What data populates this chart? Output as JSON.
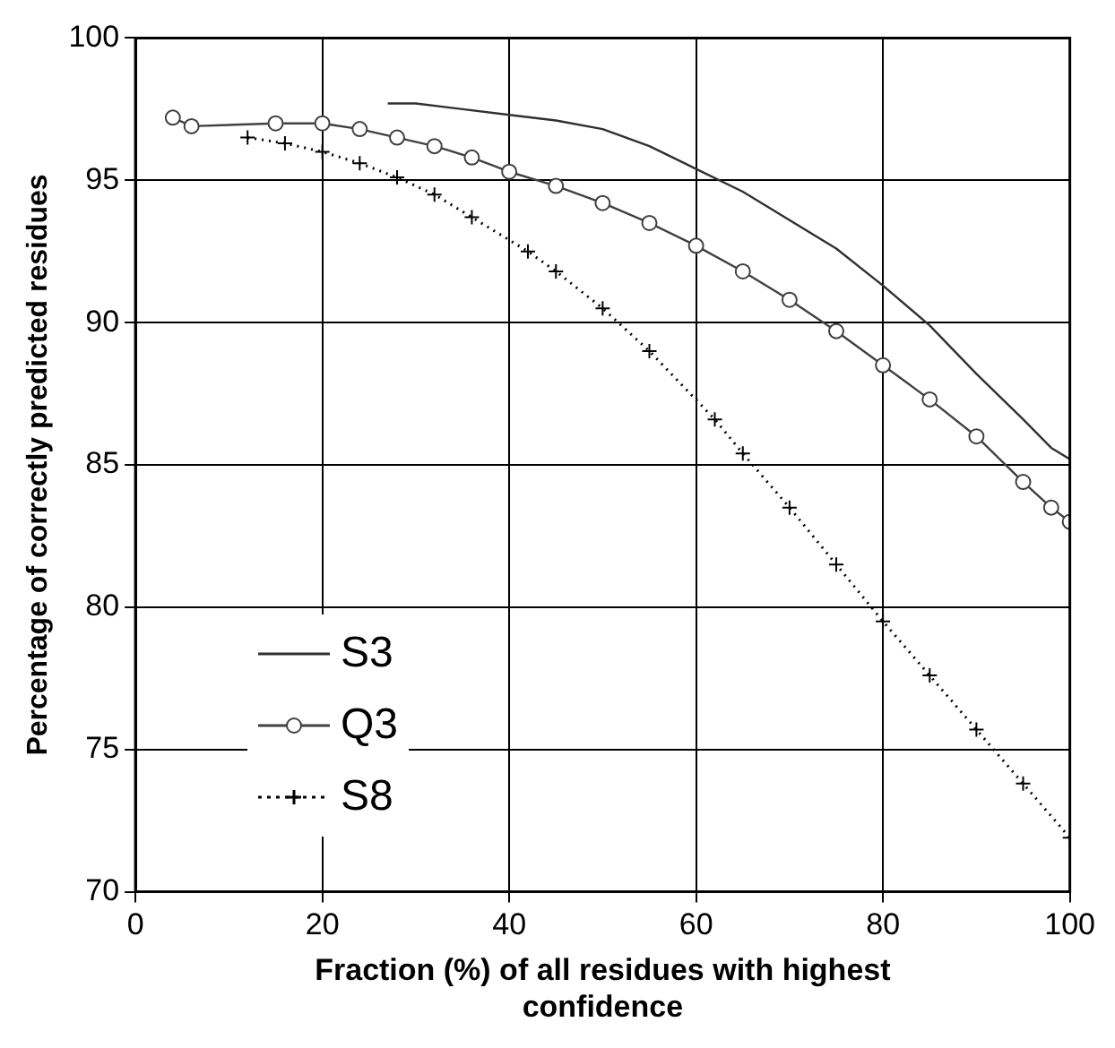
{
  "chart_data": {
    "type": "line",
    "xlabel": "Fraction (%) of all residues with highest confidence",
    "ylabel": "Percentage of correctly predicted residues",
    "xlim": [
      0,
      100
    ],
    "xticks": [
      0,
      20,
      40,
      60,
      80,
      100
    ],
    "ylim": [
      70,
      100
    ],
    "yticks": [
      70,
      75,
      80,
      85,
      90,
      95,
      100
    ],
    "grid": true,
    "legend": "bottom left",
    "series": [
      {
        "name": "S3",
        "color": "#303030",
        "marker": "none",
        "line_style": "solid",
        "x": [
          27,
          30,
          35,
          40,
          45,
          50,
          55,
          60,
          65,
          70,
          75,
          80,
          85,
          90,
          95,
          98,
          100
        ],
        "values": [
          97.7,
          97.7,
          97.5,
          97.3,
          97.1,
          96.8,
          96.2,
          95.4,
          94.6,
          93.6,
          92.6,
          91.3,
          89.9,
          88.2,
          86.6,
          85.6,
          85.2
        ]
      },
      {
        "name": "Q3",
        "color": "#404040",
        "marker": "circle",
        "line_style": "solid",
        "x": [
          4,
          6,
          15,
          20,
          24,
          28,
          32,
          36,
          40,
          45,
          50,
          55,
          60,
          65,
          70,
          75,
          80,
          85,
          90,
          95,
          98,
          100
        ],
        "values": [
          97.2,
          96.9,
          97,
          97,
          96.8,
          96.5,
          96.2,
          95.8,
          95.3,
          94.8,
          94.2,
          93.5,
          92.7,
          91.8,
          90.8,
          89.7,
          88.5,
          87.3,
          86,
          84.4,
          83.5,
          83
        ]
      },
      {
        "name": "S8",
        "color": "#000000",
        "marker": "cross",
        "line_style": "dotted",
        "x": [
          12,
          16,
          20,
          24,
          28,
          32,
          36,
          42,
          45,
          50,
          55,
          62,
          65,
          70,
          75,
          80,
          85,
          90,
          95,
          100
        ],
        "values": [
          96.5,
          96.3,
          96,
          95.6,
          95.1,
          94.5,
          93.7,
          92.5,
          91.8,
          90.5,
          89,
          86.6,
          85.4,
          83.5,
          81.5,
          79.5,
          77.6,
          75.7,
          73.8,
          71.9
        ]
      }
    ]
  }
}
